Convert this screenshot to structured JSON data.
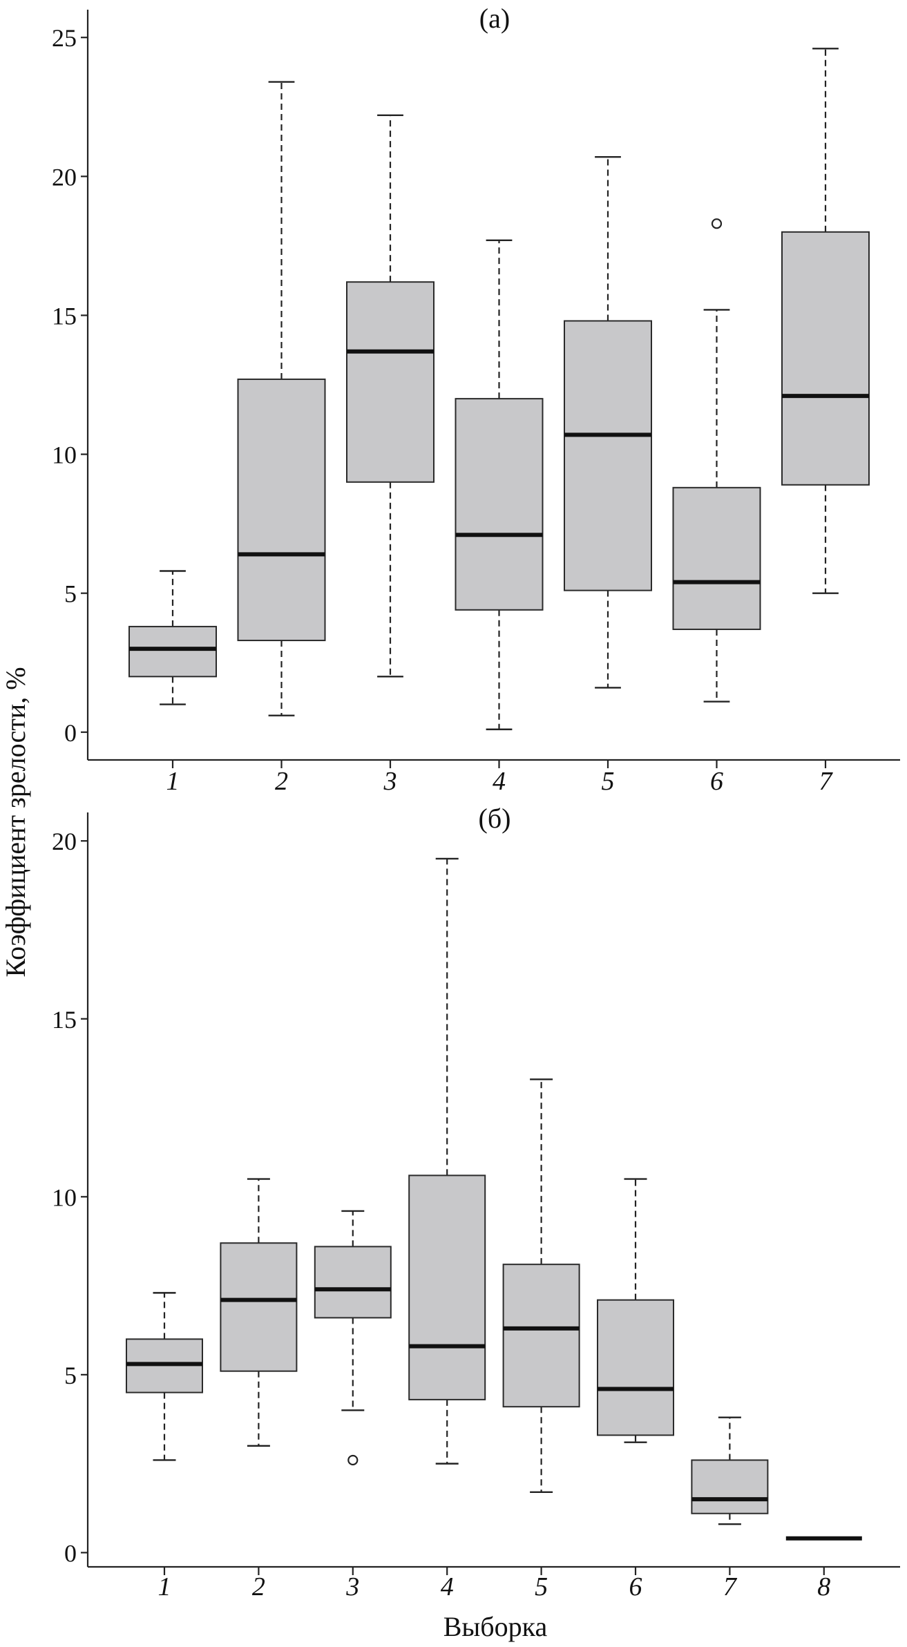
{
  "chart_data": [
    {
      "type": "box",
      "title": "(а)",
      "xlabel": "",
      "ylabel": "Коэффициент зрелости, %",
      "ylim": [
        -1,
        26
      ],
      "yticks": [
        0,
        5,
        10,
        15,
        20,
        25
      ],
      "categories": [
        "1",
        "2",
        "3",
        "4",
        "5",
        "6",
        "7"
      ],
      "series": [
        {
          "name": "1",
          "min": 1.0,
          "q1": 2.0,
          "median": 3.0,
          "q3": 3.8,
          "max": 5.8,
          "outliers": []
        },
        {
          "name": "2",
          "min": 0.6,
          "q1": 3.3,
          "median": 6.4,
          "q3": 12.7,
          "max": 23.4,
          "outliers": []
        },
        {
          "name": "3",
          "min": 2.0,
          "q1": 9.0,
          "median": 13.7,
          "q3": 16.2,
          "max": 22.2,
          "outliers": []
        },
        {
          "name": "4",
          "min": 0.1,
          "q1": 4.4,
          "median": 7.1,
          "q3": 12.0,
          "max": 17.7,
          "outliers": []
        },
        {
          "name": "5",
          "min": 1.6,
          "q1": 5.1,
          "median": 10.7,
          "q3": 14.8,
          "max": 20.7,
          "outliers": []
        },
        {
          "name": "6",
          "min": 1.1,
          "q1": 3.7,
          "median": 5.4,
          "q3": 8.8,
          "max": 15.2,
          "outliers": [
            18.3
          ]
        },
        {
          "name": "7",
          "min": 5.0,
          "q1": 8.9,
          "median": 12.1,
          "q3": 18.0,
          "max": 24.6,
          "outliers": []
        }
      ]
    },
    {
      "type": "box",
      "title": "(б)",
      "xlabel": "Выборка",
      "ylabel": "Коэффициент зрелости, %",
      "ylim": [
        -0.4,
        20.8
      ],
      "yticks": [
        0,
        5,
        10,
        15,
        20
      ],
      "categories": [
        "1",
        "2",
        "3",
        "4",
        "5",
        "6",
        "7",
        "8"
      ],
      "series": [
        {
          "name": "1",
          "min": 2.6,
          "q1": 4.5,
          "median": 5.3,
          "q3": 6.0,
          "max": 7.3,
          "outliers": []
        },
        {
          "name": "2",
          "min": 3.0,
          "q1": 5.1,
          "median": 7.1,
          "q3": 8.7,
          "max": 10.5,
          "outliers": []
        },
        {
          "name": "3",
          "min": 4.0,
          "q1": 6.6,
          "median": 7.4,
          "q3": 8.6,
          "max": 9.6,
          "outliers": [
            2.6
          ]
        },
        {
          "name": "4",
          "min": 2.5,
          "q1": 4.3,
          "median": 5.8,
          "q3": 10.6,
          "max": 19.5,
          "outliers": []
        },
        {
          "name": "5",
          "min": 1.7,
          "q1": 4.1,
          "median": 6.3,
          "q3": 8.1,
          "max": 13.3,
          "outliers": []
        },
        {
          "name": "6",
          "min": 3.1,
          "q1": 3.3,
          "median": 4.6,
          "q3": 7.1,
          "max": 10.5,
          "outliers": []
        },
        {
          "name": "7",
          "min": 0.8,
          "q1": 1.1,
          "median": 1.5,
          "q3": 2.6,
          "max": 3.8,
          "outliers": []
        },
        {
          "name": "8",
          "min": 0.4,
          "q1": 0.4,
          "median": 0.4,
          "q3": 0.4,
          "max": 0.4,
          "outliers": []
        }
      ]
    }
  ]
}
